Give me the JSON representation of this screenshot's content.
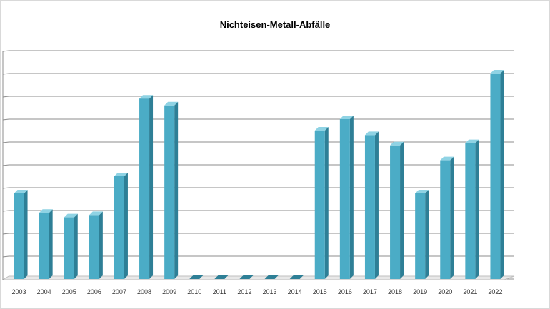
{
  "chart_data": {
    "type": "bar",
    "title": "Nichteisen-Metall-Abfälle",
    "xlabel": "",
    "ylabel": "",
    "categories": [
      "2003",
      "2004",
      "2005",
      "2006",
      "2007",
      "2008",
      "2009",
      "2010",
      "2011",
      "2012",
      "2013",
      "2014",
      "2015",
      "2016",
      "2017",
      "2018",
      "2019",
      "2020",
      "2021",
      "2022"
    ],
    "values": [
      3.75,
      2.9,
      2.7,
      2.8,
      4.5,
      7.9,
      7.6,
      0,
      0,
      0,
      0,
      0,
      6.5,
      7.0,
      6.3,
      5.85,
      3.75,
      5.2,
      5.95,
      9.0
    ],
    "ylim": [
      0,
      10
    ],
    "y_tick_labels_shown": false,
    "grid": true,
    "legend": "none",
    "colors": {
      "bar_front": "#4bacc6",
      "bar_side": "#2e7f96",
      "bar_top": "#8fd3e4",
      "grid": "#8c8c8c"
    }
  }
}
